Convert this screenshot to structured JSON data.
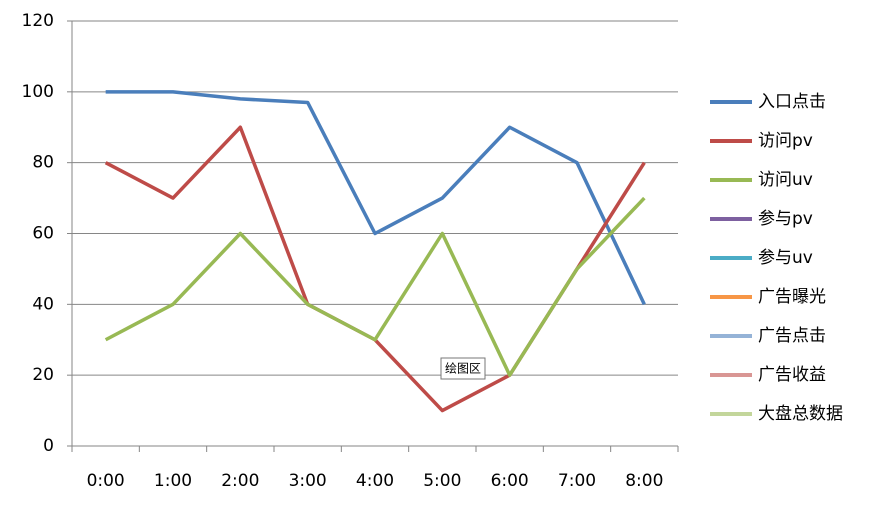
{
  "chart_data": {
    "type": "line",
    "categories": [
      "0:00",
      "1:00",
      "2:00",
      "3:00",
      "4:00",
      "5:00",
      "6:00",
      "7:00",
      "8:00"
    ],
    "series": [
      {
        "name": "入口点击",
        "color": "#4a7ebb",
        "values": [
          100,
          100,
          98,
          97,
          60,
          70,
          90,
          80,
          40
        ]
      },
      {
        "name": "访问pv",
        "color": "#be4b48",
        "values": [
          80,
          70,
          90,
          40,
          30,
          10,
          20,
          50,
          80
        ]
      },
      {
        "name": "访问uv",
        "color": "#98b954",
        "values": [
          30,
          40,
          60,
          40,
          30,
          60,
          20,
          50,
          70
        ]
      },
      {
        "name": "参与pv",
        "color": "#7d60a0",
        "values": [
          null,
          null,
          null,
          null,
          null,
          null,
          null,
          null,
          null
        ]
      },
      {
        "name": "参与uv",
        "color": "#4bacc6",
        "values": [
          null,
          null,
          null,
          null,
          null,
          null,
          null,
          null,
          null
        ]
      },
      {
        "name": "广告曝光",
        "color": "#f79646",
        "values": [
          null,
          null,
          null,
          null,
          null,
          null,
          null,
          null,
          null
        ]
      },
      {
        "name": "广告点击",
        "color": "#95b3d7",
        "values": [
          null,
          null,
          null,
          null,
          null,
          null,
          null,
          null,
          null
        ]
      },
      {
        "name": "广告收益",
        "color": "#d99694",
        "values": [
          null,
          null,
          null,
          null,
          null,
          null,
          null,
          null,
          null
        ]
      },
      {
        "name": "大盘总数据",
        "color": "#c3d69b",
        "values": [
          null,
          null,
          null,
          null,
          null,
          null,
          null,
          null,
          null
        ]
      }
    ],
    "ylim": [
      0,
      120
    ],
    "yticks": [
      0,
      20,
      40,
      60,
      80,
      100,
      120
    ],
    "grid": true,
    "legend": "right",
    "annotation": "绘图区"
  }
}
